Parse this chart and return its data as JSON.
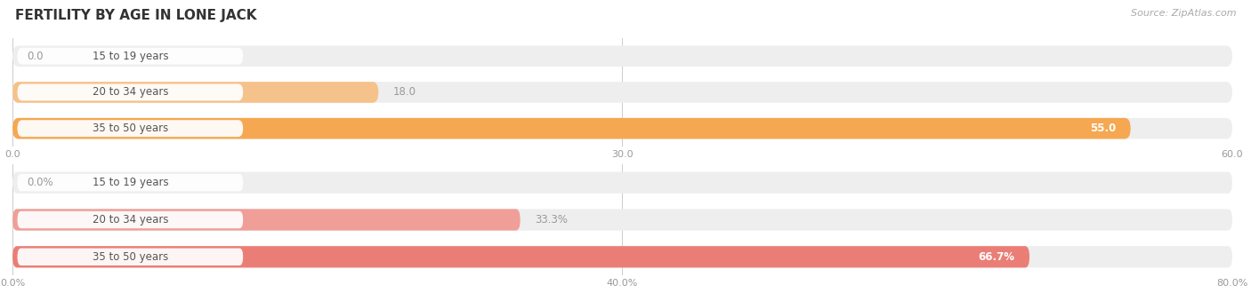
{
  "title": "FERTILITY BY AGE IN LONE JACK",
  "source": "Source: ZipAtlas.com",
  "chart1": {
    "categories": [
      "15 to 19 years",
      "20 to 34 years",
      "35 to 50 years"
    ],
    "values": [
      0.0,
      18.0,
      55.0
    ],
    "xmax": 60.0,
    "xticks": [
      0.0,
      30.0,
      60.0
    ],
    "xtick_labels": [
      "0.0",
      "30.0",
      "60.0"
    ],
    "bar_color_low": "#f7cfa8",
    "bar_color_high": "#f5a54a",
    "bar_bg_color": "#eeeeee",
    "value_outside_color": "#999999"
  },
  "chart2": {
    "categories": [
      "15 to 19 years",
      "20 to 34 years",
      "35 to 50 years"
    ],
    "values": [
      0.0,
      33.3,
      66.7
    ],
    "xmax": 80.0,
    "xticks": [
      0.0,
      40.0,
      80.0
    ],
    "xtick_labels": [
      "0.0%",
      "40.0%",
      "80.0%"
    ],
    "bar_color_low": "#f5c0b8",
    "bar_color_high": "#e8726a",
    "bar_bg_color": "#eeeeee",
    "value_outside_color": "#999999"
  },
  "label_color": "#555555",
  "bg_color": "#ffffff",
  "title_fontsize": 11,
  "label_fontsize": 8.5,
  "tick_fontsize": 8,
  "bar_height": 0.58
}
